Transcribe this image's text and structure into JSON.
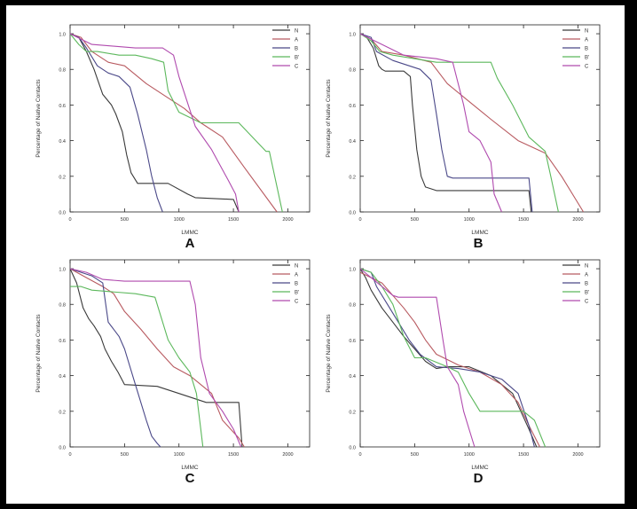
{
  "colors": {
    "N": "#3a3a3a",
    "A": "#b85a60",
    "B": "#4a4888",
    "B'": "#5cb85c",
    "C": "#b04aae"
  },
  "chart_data": [
    {
      "type": "line",
      "panel_label": "A",
      "xlabel": "LMMC",
      "ylabel": "Percentage of Native Contacts",
      "xlim": [
        0,
        2200
      ],
      "ylim": [
        0,
        1.05
      ],
      "xticks": [
        0,
        500,
        1000,
        1500,
        2000
      ],
      "xtick_labels": [
        "0",
        "500",
        "1000",
        "1500",
        "2000"
      ],
      "yticks": [
        0,
        0.2,
        0.4,
        0.6,
        0.8,
        1.0
      ],
      "ytick_labels": [
        "0.0",
        "0.2",
        "0.4",
        "0.6",
        "0.8",
        "1.0"
      ],
      "legend": [
        "N",
        "A",
        "B",
        "B'",
        "C"
      ],
      "series": [
        {
          "name": "N",
          "x": [
            0,
            80,
            150,
            220,
            300,
            380,
            420,
            480,
            520,
            560,
            620,
            900,
            1080,
            1150,
            1500,
            1550
          ],
          "y": [
            1.0,
            0.98,
            0.9,
            0.8,
            0.66,
            0.6,
            0.55,
            0.45,
            0.32,
            0.22,
            0.16,
            0.16,
            0.1,
            0.08,
            0.07,
            0.0
          ]
        },
        {
          "name": "A",
          "x": [
            0,
            100,
            200,
            350,
            500,
            700,
            900,
            1050,
            1200,
            1400,
            1600,
            1900
          ],
          "y": [
            1.0,
            0.98,
            0.9,
            0.84,
            0.82,
            0.72,
            0.64,
            0.58,
            0.5,
            0.42,
            0.25,
            0.0
          ]
        },
        {
          "name": "B",
          "x": [
            0,
            80,
            150,
            250,
            350,
            450,
            550,
            620,
            700,
            750,
            800,
            850
          ],
          "y": [
            1.0,
            0.98,
            0.92,
            0.82,
            0.78,
            0.76,
            0.7,
            0.55,
            0.35,
            0.2,
            0.08,
            0.0
          ]
        },
        {
          "name": "B'",
          "x": [
            0,
            80,
            150,
            250,
            450,
            600,
            750,
            860,
            900,
            1000,
            1200,
            1550,
            1800,
            1830,
            1950
          ],
          "y": [
            1.0,
            0.94,
            0.9,
            0.9,
            0.88,
            0.88,
            0.86,
            0.84,
            0.68,
            0.56,
            0.5,
            0.5,
            0.34,
            0.34,
            0.0
          ]
        },
        {
          "name": "C",
          "x": [
            0,
            100,
            200,
            400,
            600,
            850,
            950,
            1000,
            1150,
            1300,
            1450,
            1520,
            1550
          ],
          "y": [
            1.0,
            0.97,
            0.94,
            0.93,
            0.92,
            0.92,
            0.88,
            0.76,
            0.48,
            0.35,
            0.18,
            0.1,
            0.0
          ]
        }
      ]
    },
    {
      "type": "line",
      "panel_label": "B",
      "xlabel": "LMMC",
      "ylabel": "Percentage of Native Contacts",
      "xlim": [
        0,
        2200
      ],
      "ylim": [
        0,
        1.05
      ],
      "xticks": [
        0,
        500,
        1000,
        1500,
        2000
      ],
      "xtick_labels": [
        "0",
        "500",
        "1000",
        "1500",
        "2000"
      ],
      "yticks": [
        0,
        0.2,
        0.4,
        0.6,
        0.8,
        1.0
      ],
      "ytick_labels": [
        "0.0",
        "0.2",
        "0.4",
        "0.6",
        "0.8",
        "1.0"
      ],
      "legend": [
        "N",
        "A",
        "B",
        "B'",
        "C"
      ],
      "series": [
        {
          "name": "N",
          "x": [
            0,
            60,
            120,
            170,
            200,
            230,
            400,
            460,
            480,
            520,
            560,
            600,
            700,
            800,
            1000,
            1550,
            1570
          ],
          "y": [
            1.0,
            0.98,
            0.92,
            0.82,
            0.8,
            0.79,
            0.79,
            0.76,
            0.6,
            0.35,
            0.2,
            0.14,
            0.12,
            0.12,
            0.12,
            0.12,
            0.0
          ]
        },
        {
          "name": "A",
          "x": [
            0,
            100,
            200,
            400,
            650,
            800,
            1000,
            1200,
            1450,
            1700,
            1850,
            2050
          ],
          "y": [
            1.0,
            0.97,
            0.9,
            0.88,
            0.84,
            0.72,
            0.62,
            0.52,
            0.4,
            0.33,
            0.2,
            0.0
          ]
        },
        {
          "name": "B",
          "x": [
            0,
            100,
            150,
            300,
            450,
            550,
            650,
            700,
            750,
            800,
            850,
            1550,
            1580
          ],
          "y": [
            1.0,
            0.98,
            0.9,
            0.85,
            0.82,
            0.8,
            0.74,
            0.55,
            0.35,
            0.2,
            0.19,
            0.19,
            0.0
          ]
        },
        {
          "name": "B'",
          "x": [
            0,
            100,
            180,
            300,
            500,
            700,
            900,
            1200,
            1260,
            1400,
            1550,
            1700,
            1750,
            1820
          ],
          "y": [
            1.0,
            0.96,
            0.9,
            0.88,
            0.86,
            0.84,
            0.84,
            0.84,
            0.75,
            0.6,
            0.42,
            0.34,
            0.2,
            0.0
          ]
        },
        {
          "name": "C",
          "x": [
            0,
            100,
            200,
            400,
            700,
            850,
            950,
            1000,
            1100,
            1200,
            1230,
            1300
          ],
          "y": [
            1.0,
            0.97,
            0.94,
            0.88,
            0.86,
            0.84,
            0.6,
            0.45,
            0.4,
            0.28,
            0.1,
            0.0
          ]
        }
      ]
    },
    {
      "type": "line",
      "panel_label": "C",
      "xlabel": "LMMC",
      "ylabel": "Percentage of Native Contacts",
      "xlim": [
        0,
        2200
      ],
      "ylim": [
        0,
        1.05
      ],
      "xticks": [
        0,
        500,
        1000,
        1500,
        2000
      ],
      "xtick_labels": [
        "0",
        "500",
        "1000",
        "1500",
        "2000"
      ],
      "yticks": [
        0,
        0.2,
        0.4,
        0.6,
        0.8,
        1.0
      ],
      "ytick_labels": [
        "0.0",
        "0.2",
        "0.4",
        "0.6",
        "0.8",
        "1.0"
      ],
      "legend": [
        "N",
        "A",
        "B",
        "B'",
        "C"
      ],
      "series": [
        {
          "name": "N",
          "x": [
            0,
            60,
            120,
            170,
            220,
            280,
            320,
            380,
            440,
            500,
            800,
            1000,
            1250,
            1550,
            1580
          ],
          "y": [
            1.0,
            0.92,
            0.78,
            0.72,
            0.68,
            0.62,
            0.55,
            0.48,
            0.42,
            0.35,
            0.34,
            0.3,
            0.25,
            0.25,
            0.0
          ]
        },
        {
          "name": "A",
          "x": [
            0,
            150,
            300,
            400,
            500,
            650,
            800,
            950,
            1100,
            1300,
            1400,
            1550,
            1600
          ],
          "y": [
            1.0,
            0.95,
            0.9,
            0.86,
            0.76,
            0.66,
            0.55,
            0.45,
            0.4,
            0.3,
            0.15,
            0.05,
            0.0
          ]
        },
        {
          "name": "B",
          "x": [
            0,
            100,
            200,
            300,
            350,
            450,
            500,
            550,
            600,
            700,
            750,
            800,
            830
          ],
          "y": [
            1.0,
            0.98,
            0.96,
            0.92,
            0.7,
            0.62,
            0.55,
            0.45,
            0.35,
            0.15,
            0.06,
            0.02,
            0.0
          ]
        },
        {
          "name": "B'",
          "x": [
            0,
            100,
            200,
            600,
            780,
            900,
            1000,
            1100,
            1160,
            1200,
            1220
          ],
          "y": [
            0.9,
            0.9,
            0.88,
            0.86,
            0.84,
            0.6,
            0.5,
            0.42,
            0.3,
            0.1,
            0.0
          ]
        },
        {
          "name": "C",
          "x": [
            0,
            150,
            300,
            500,
            800,
            1100,
            1150,
            1200,
            1280,
            1400,
            1500,
            1570
          ],
          "y": [
            1.0,
            0.98,
            0.94,
            0.93,
            0.93,
            0.93,
            0.8,
            0.5,
            0.3,
            0.2,
            0.1,
            0.0
          ]
        }
      ]
    },
    {
      "type": "line",
      "panel_label": "D",
      "xlabel": "LMMC",
      "ylabel": "Percentage of Native Contacts",
      "xlim": [
        0,
        2200
      ],
      "ylim": [
        0,
        1.05
      ],
      "xticks": [
        0,
        500,
        1000,
        1500,
        2000
      ],
      "xtick_labels": [
        "0",
        "500",
        "1000",
        "1500",
        "2000"
      ],
      "yticks": [
        0,
        0.2,
        0.4,
        0.6,
        0.8,
        1.0
      ],
      "ytick_labels": [
        "0.0",
        "0.2",
        "0.4",
        "0.6",
        "0.8",
        "1.0"
      ],
      "legend": [
        "N",
        "A",
        "B",
        "B'",
        "C"
      ],
      "series": [
        {
          "name": "N",
          "x": [
            0,
            50,
            100,
            200,
            300,
            400,
            500,
            600,
            700,
            800,
            1000,
            1200,
            1400,
            1550,
            1620
          ],
          "y": [
            1.0,
            0.95,
            0.88,
            0.78,
            0.7,
            0.62,
            0.55,
            0.48,
            0.44,
            0.45,
            0.45,
            0.4,
            0.3,
            0.1,
            0.0
          ]
        },
        {
          "name": "A",
          "x": [
            0,
            100,
            200,
            300,
            400,
            500,
            600,
            700,
            900,
            1100,
            1300,
            1450,
            1550,
            1650
          ],
          "y": [
            0.98,
            0.95,
            0.92,
            0.85,
            0.78,
            0.7,
            0.6,
            0.52,
            0.46,
            0.42,
            0.35,
            0.25,
            0.12,
            0.0
          ]
        },
        {
          "name": "B",
          "x": [
            0,
            100,
            150,
            250,
            350,
            450,
            550,
            700,
            900,
            1100,
            1300,
            1450,
            1550,
            1600
          ],
          "y": [
            1.0,
            0.98,
            0.9,
            0.8,
            0.7,
            0.6,
            0.52,
            0.45,
            0.44,
            0.42,
            0.38,
            0.3,
            0.12,
            0.0
          ]
        },
        {
          "name": "B'",
          "x": [
            0,
            100,
            200,
            300,
            400,
            500,
            600,
            800,
            900,
            1000,
            1100,
            1300,
            1500,
            1600,
            1700
          ],
          "y": [
            1.0,
            0.98,
            0.9,
            0.8,
            0.62,
            0.5,
            0.5,
            0.45,
            0.42,
            0.3,
            0.2,
            0.2,
            0.2,
            0.15,
            0.0
          ]
        },
        {
          "name": "C",
          "x": [
            0,
            100,
            200,
            300,
            350,
            500,
            700,
            760,
            800,
            900,
            950,
            1000,
            1050
          ],
          "y": [
            1.0,
            0.95,
            0.9,
            0.85,
            0.84,
            0.84,
            0.84,
            0.6,
            0.45,
            0.35,
            0.2,
            0.1,
            0.0
          ]
        }
      ]
    }
  ]
}
